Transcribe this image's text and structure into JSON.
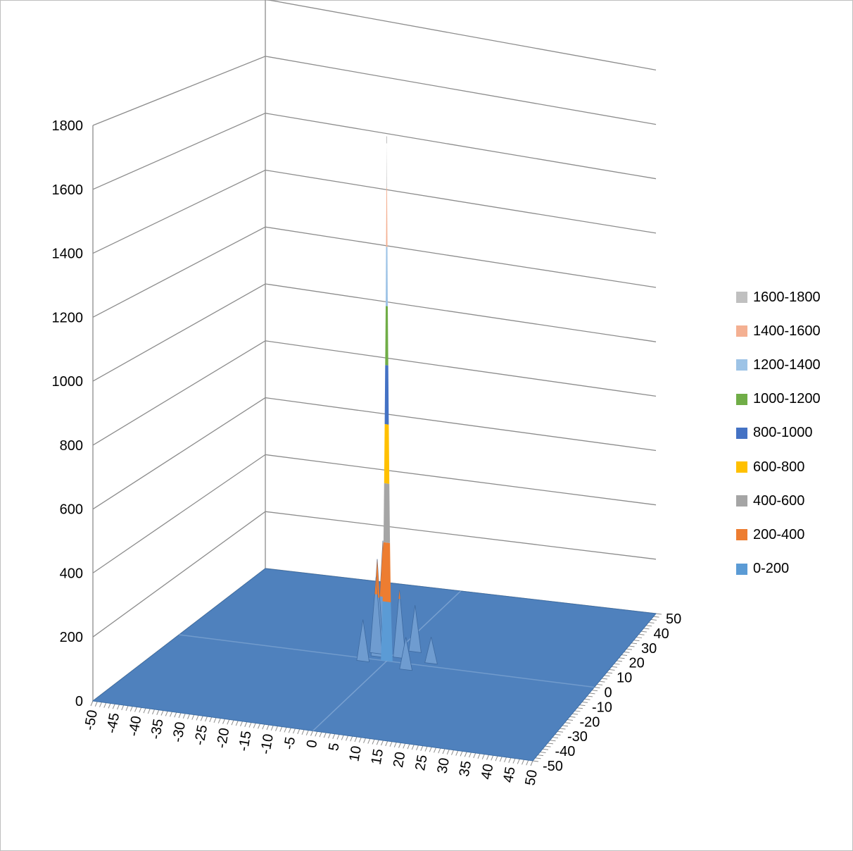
{
  "chart_data": {
    "type": "surface",
    "title": "",
    "x_ticks": [
      "-50",
      "-45",
      "-40",
      "-35",
      "-30",
      "-25",
      "-20",
      "-15",
      "-10",
      "-5",
      "0",
      "5",
      "10",
      "15",
      "20",
      "25",
      "30",
      "35",
      "40",
      "45",
      "50"
    ],
    "y_ticks": [
      "-50",
      "-40",
      "-30",
      "-20",
      "-10",
      "0",
      "10",
      "20",
      "30",
      "40",
      "50"
    ],
    "z_ticks": [
      "0",
      "200",
      "400",
      "600",
      "800",
      "1000",
      "1200",
      "1400",
      "1600",
      "1800"
    ],
    "zlim": [
      0,
      1800
    ],
    "xlim": [
      -50,
      50
    ],
    "ylim": [
      -50,
      50
    ],
    "grid": true,
    "legend_position": "right",
    "peak": {
      "x": 0,
      "y": 0,
      "z": 1750
    },
    "secondary_peaks": [
      {
        "x": -2,
        "y": 3,
        "z": 390
      },
      {
        "x": -3,
        "y": 2,
        "z": 330
      },
      {
        "x": -4,
        "y": 4,
        "z": 260
      },
      {
        "x": 2,
        "y": 3,
        "z": 230
      },
      {
        "x": 4,
        "y": 8,
        "z": 160
      },
      {
        "x": -5,
        "y": -2,
        "z": 140
      },
      {
        "x": 6,
        "y": -4,
        "z": 110
      },
      {
        "x": 10,
        "y": 2,
        "z": 90
      }
    ],
    "baseline": 0,
    "bands": [
      {
        "label": "1600-1800",
        "color": "#c0c0c0"
      },
      {
        "label": "1400-1600",
        "color": "#f4b092"
      },
      {
        "label": "1200-1400",
        "color": "#9dc3e6"
      },
      {
        "label": "1000-1200",
        "color": "#70ad47"
      },
      {
        "label": "800-1000",
        "color": "#4472c4"
      },
      {
        "label": "600-800",
        "color": "#ffc000"
      },
      {
        "label": "400-600",
        "color": "#a5a5a5"
      },
      {
        "label": "200-400",
        "color": "#ed7d31"
      },
      {
        "label": "0-200",
        "color": "#5b9bd5"
      }
    ],
    "surface_color": "#4f81bd"
  }
}
